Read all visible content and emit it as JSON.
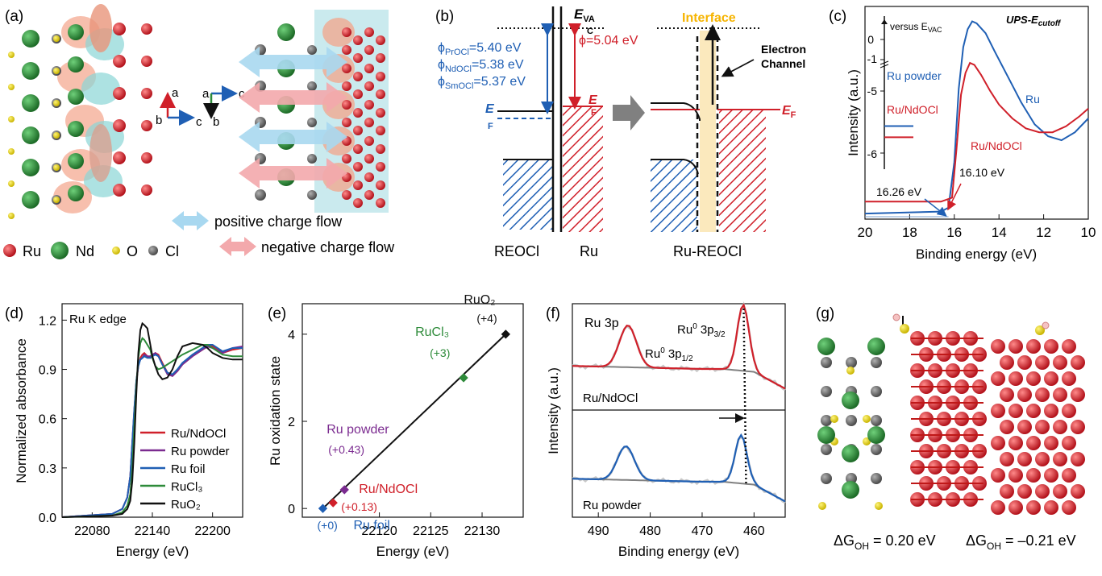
{
  "colors": {
    "ru_red": "#d0202a",
    "nd_green": "#2e8b3a",
    "o_yellow": "#e8d400",
    "cl_gray": "#6b6b6b",
    "blue": "#1f5fb4",
    "purple": "#7b2b90",
    "pos_flow": "#a8d8f0",
    "neg_flow": "#f3a9ac",
    "interface": "#f6b400"
  },
  "panels": {
    "a": {
      "label": "(a)",
      "axes_left": {
        "a": "a",
        "b": "b",
        "c": "c"
      },
      "axes_right": {
        "a": "a",
        "b": "b",
        "c": "c"
      },
      "legend_pos": "positive charge flow",
      "legend_neg": "negative charge flow",
      "atoms": {
        "ru": "Ru",
        "nd": "Nd",
        "o": "O",
        "cl": "Cl"
      }
    },
    "b": {
      "label": "(b)",
      "evac_main": "E",
      "evac_sub1": "VA",
      "evac_sub2": "C",
      "phi_pr_a": "ϕ",
      "phi_pr_sub": "PrOCl",
      "phi_pr_b": "=5.40 eV",
      "phi_nd_a": "ϕ",
      "phi_nd_sub": "NdOCl",
      "phi_nd_b": "=5.38 eV",
      "phi_sm_a": "ϕ",
      "phi_sm_sub": "SmOCl",
      "phi_sm_b": "=5.37 eV",
      "phi_ru": "ϕ=5.04 eV",
      "ef_left_main": "E",
      "ef_left_sub": "F",
      "ef_ru_main": "E",
      "ef_ru_sub": "F",
      "ef_right_main": "E",
      "ef_right_sub": "F",
      "interface": "Interface",
      "channel_1": "Electron",
      "channel_2": "Channel",
      "x_reocl": "REOCl",
      "x_ru": "Ru",
      "x_ru_reocl": "Ru-REOCl"
    },
    "g": {
      "label": "(g)",
      "dg_left_a": "ΔG",
      "dg_left_sub": "OH",
      "dg_left_b": " = 0.20 eV",
      "dg_right_a": "ΔG",
      "dg_right_sub": "OH",
      "dg_right_b": " = –0.21 eV"
    }
  },
  "chart_data": [
    {
      "panel": "(c)",
      "type": "line",
      "title": "UPS-E",
      "title_sub": "cutoff",
      "xlabel": "Binding energy (eV)",
      "ylabel": "Intensity (a.u.)",
      "xlim": [
        20,
        10
      ],
      "x_ticks": [
        "20",
        "18",
        "16",
        "14",
        "12",
        "10"
      ],
      "series": [
        {
          "name": "Ru",
          "color": "#1f5fb4",
          "x": [
            20,
            16.6,
            16.26,
            16.0,
            15.8,
            15.6,
            15.4,
            15.2,
            15.0,
            14.6,
            14.2,
            13.6,
            13.0,
            12.4,
            11.8,
            11.2,
            10.6,
            10.0
          ],
          "y": [
            0.02,
            0.03,
            0.05,
            0.28,
            0.65,
            0.86,
            0.95,
            0.99,
            0.98,
            0.93,
            0.84,
            0.71,
            0.58,
            0.47,
            0.41,
            0.39,
            0.43,
            0.5
          ]
        },
        {
          "name": "Ru/NdOCl",
          "color": "#d0202a",
          "x": [
            20,
            16.6,
            16.1,
            15.9,
            15.7,
            15.5,
            15.3,
            15.1,
            14.8,
            14.4,
            14.0,
            13.4,
            12.8,
            12.2,
            11.6,
            11.0,
            10.4,
            10.0
          ],
          "y": [
            0.08,
            0.08,
            0.1,
            0.35,
            0.62,
            0.73,
            0.78,
            0.77,
            0.72,
            0.64,
            0.57,
            0.5,
            0.45,
            0.43,
            0.43,
            0.46,
            0.51,
            0.55
          ]
        }
      ],
      "annotations": [
        "16.26 eV",
        "16.10 eV",
        "Ru",
        "Ru/NdOCl"
      ],
      "inset": {
        "ylabel": "versus E",
        "ylabel_sub": "VAC",
        "ticks": [
          "0",
          "-1",
          "-5",
          "-6"
        ],
        "legend": [
          "Ru powder",
          "Ru/NdOCl"
        ],
        "ru_powder_y": -4.66,
        "ru_ndocl_y": -5.04
      }
    },
    {
      "panel": "(d)",
      "type": "line",
      "title": "Ru K edge",
      "xlabel": "Energy (eV)",
      "ylabel": "Normalized absorbance",
      "xlim": [
        22050,
        22230
      ],
      "ylim": [
        0,
        1.3
      ],
      "x_ticks": [
        "22080",
        "22140",
        "22200"
      ],
      "y_ticks": [
        "0.0",
        "0.3",
        "0.6",
        "0.9",
        "1.2"
      ],
      "legend_placement": "bottom-right",
      "x": [
        22050,
        22100,
        22110,
        22115,
        22118,
        22120,
        22122,
        22124,
        22126,
        22128,
        22130,
        22132,
        22135,
        22138,
        22140,
        22143,
        22146,
        22150,
        22155,
        22160,
        22165,
        22170,
        22180,
        22190,
        22195,
        22200,
        22210,
        22220,
        22230
      ],
      "series": [
        {
          "name": "Ru/NdOCl",
          "color": "#d0202a",
          "y": [
            0,
            0.02,
            0.05,
            0.12,
            0.25,
            0.45,
            0.65,
            0.82,
            0.92,
            0.97,
            0.99,
            1.0,
            0.98,
            0.97,
            0.98,
            1.0,
            0.99,
            0.94,
            0.88,
            0.86,
            0.89,
            0.93,
            0.98,
            1.02,
            1.04,
            1.04,
            1.0,
            1.02,
            1.03
          ]
        },
        {
          "name": "Ru powder",
          "color": "#7b2b90",
          "y": [
            0,
            0.02,
            0.05,
            0.12,
            0.25,
            0.45,
            0.65,
            0.83,
            0.93,
            0.96,
            0.97,
            0.99,
            0.98,
            0.98,
            0.99,
            1.0,
            0.98,
            0.93,
            0.87,
            0.86,
            0.89,
            0.93,
            0.98,
            1.02,
            1.04,
            1.03,
            1.0,
            1.03,
            1.04
          ]
        },
        {
          "name": "Ru foil",
          "color": "#1f5fb4",
          "y": [
            0,
            0.02,
            0.05,
            0.12,
            0.25,
            0.46,
            0.66,
            0.83,
            0.92,
            0.96,
            0.97,
            0.98,
            0.97,
            0.97,
            0.98,
            0.99,
            0.98,
            0.93,
            0.88,
            0.87,
            0.9,
            0.94,
            0.99,
            1.03,
            1.05,
            1.05,
            1.01,
            1.03,
            1.03
          ]
        },
        {
          "name": "RuCl₃",
          "color": "#2e8b3a",
          "y": [
            0,
            0.01,
            0.03,
            0.07,
            0.14,
            0.3,
            0.55,
            0.8,
            0.97,
            1.06,
            1.09,
            1.08,
            1.05,
            1.02,
            0.97,
            0.92,
            0.9,
            0.91,
            0.93,
            0.95,
            0.97,
            0.99,
            1.02,
            1.05,
            1.05,
            1.03,
            0.99,
            0.98,
            0.98
          ]
        },
        {
          "name": "RuO₂",
          "color": "#111111",
          "y": [
            0,
            0.01,
            0.02,
            0.05,
            0.1,
            0.22,
            0.45,
            0.75,
            1.0,
            1.14,
            1.18,
            1.17,
            1.15,
            1.05,
            0.98,
            0.92,
            0.87,
            0.84,
            0.85,
            0.9,
            0.98,
            1.04,
            1.06,
            1.05,
            1.03,
            1.0,
            0.97,
            0.96,
            0.96
          ]
        }
      ]
    },
    {
      "panel": "(e)",
      "type": "scatter",
      "xlabel": "Energy (eV)",
      "ylabel": "Ru oxidation state",
      "xlim": [
        22112.5,
        22134
      ],
      "ylim": [
        -0.2,
        4.7
      ],
      "x_ticks": [
        "22120",
        "22125",
        "22130"
      ],
      "y_ticks": [
        "0",
        "2",
        "4"
      ],
      "points": [
        {
          "name": "Ru foil",
          "value": "(+0)",
          "x": 22114.5,
          "y": 0,
          "color": "#1f5fb4"
        },
        {
          "name": "Ru/NdOCl",
          "value": "(+0.13)",
          "x": 22115.5,
          "y": 0.13,
          "color": "#d0202a"
        },
        {
          "name": "Ru powder",
          "value": "(+0.43)",
          "x": 22116.6,
          "y": 0.43,
          "color": "#7b2b90"
        },
        {
          "name": "RuCl₃",
          "value": "(+3)",
          "x": 22128.2,
          "y": 3,
          "color": "#2e8b3a"
        },
        {
          "name": "RuO₂",
          "value": "(+4)",
          "x": 22132.3,
          "y": 4,
          "color": "#111111"
        }
      ],
      "fit_line": {
        "x": [
          22114.5,
          22132.3
        ],
        "y": [
          0,
          4
        ]
      }
    },
    {
      "panel": "(f)",
      "type": "line",
      "title": "Ru 3p",
      "xlabel": "Binding energy (eV)",
      "ylabel": "Intensity (a.u.)",
      "xlim": [
        495,
        454
      ],
      "x_ticks": [
        "490",
        "480",
        "470",
        "460"
      ],
      "peak_labels": {
        "p12_a": "Ru",
        "p12_sup": "0",
        "p12_b": " 3p",
        "p12_sub": "1/2",
        "p32_a": "Ru",
        "p32_sup": "0",
        "p32_b": " 3p",
        "p32_sub": "3/2"
      },
      "series": [
        {
          "name": "Ru/NdOCl",
          "color": "#d0202a",
          "peaks": [
            484.3,
            462.1
          ]
        },
        {
          "name": "Ru powder",
          "color": "#1f5fb4",
          "peaks": [
            484.7,
            462.5
          ]
        }
      ],
      "reference_line_x": 462.0
    }
  ]
}
